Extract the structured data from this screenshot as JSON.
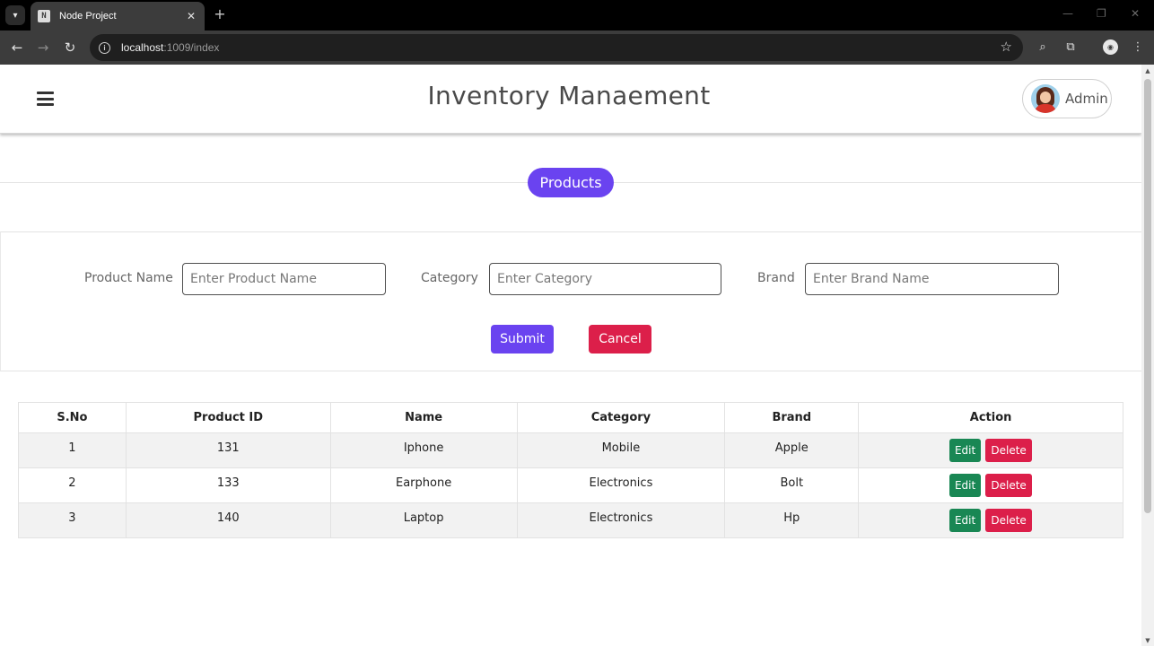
{
  "browser": {
    "tab_title": "Node Project",
    "url_host": "localhost",
    "url_path": ":1009/index"
  },
  "header": {
    "title": "Inventory Manaement",
    "user_label": "Admin"
  },
  "section": {
    "title": "Products"
  },
  "form": {
    "product_name_label": "Product Name",
    "product_name_placeholder": "Enter Product Name",
    "category_label": "Category",
    "category_placeholder": "Enter Category",
    "brand_label": "Brand",
    "brand_placeholder": "Enter Brand Name",
    "submit_label": "Submit",
    "cancel_label": "Cancel"
  },
  "table": {
    "headers": [
      "S.No",
      "Product ID",
      "Name",
      "Category",
      "Brand",
      "Action"
    ],
    "rows": [
      {
        "sno": "1",
        "product_id": "131",
        "name": "Iphone",
        "category": "Mobile",
        "brand": "Apple"
      },
      {
        "sno": "2",
        "product_id": "133",
        "name": "Earphone",
        "category": "Electronics",
        "brand": "Bolt"
      },
      {
        "sno": "3",
        "product_id": "140",
        "name": "Laptop",
        "category": "Electronics",
        "brand": "Hp"
      }
    ],
    "edit_label": "Edit",
    "delete_label": "Delete"
  },
  "colors": {
    "primary": "#6a43f0",
    "danger": "#dc1f4a",
    "success": "#198754"
  },
  "icons": [
    "tab-search-icon",
    "close-icon",
    "plus-icon",
    "back-arrow-icon",
    "forward-arrow-icon",
    "reload-icon",
    "info-icon",
    "star-icon",
    "lens-icon",
    "extensions-icon",
    "profile-icon",
    "kebab-menu-icon",
    "hamburger-icon",
    "avatar"
  ]
}
